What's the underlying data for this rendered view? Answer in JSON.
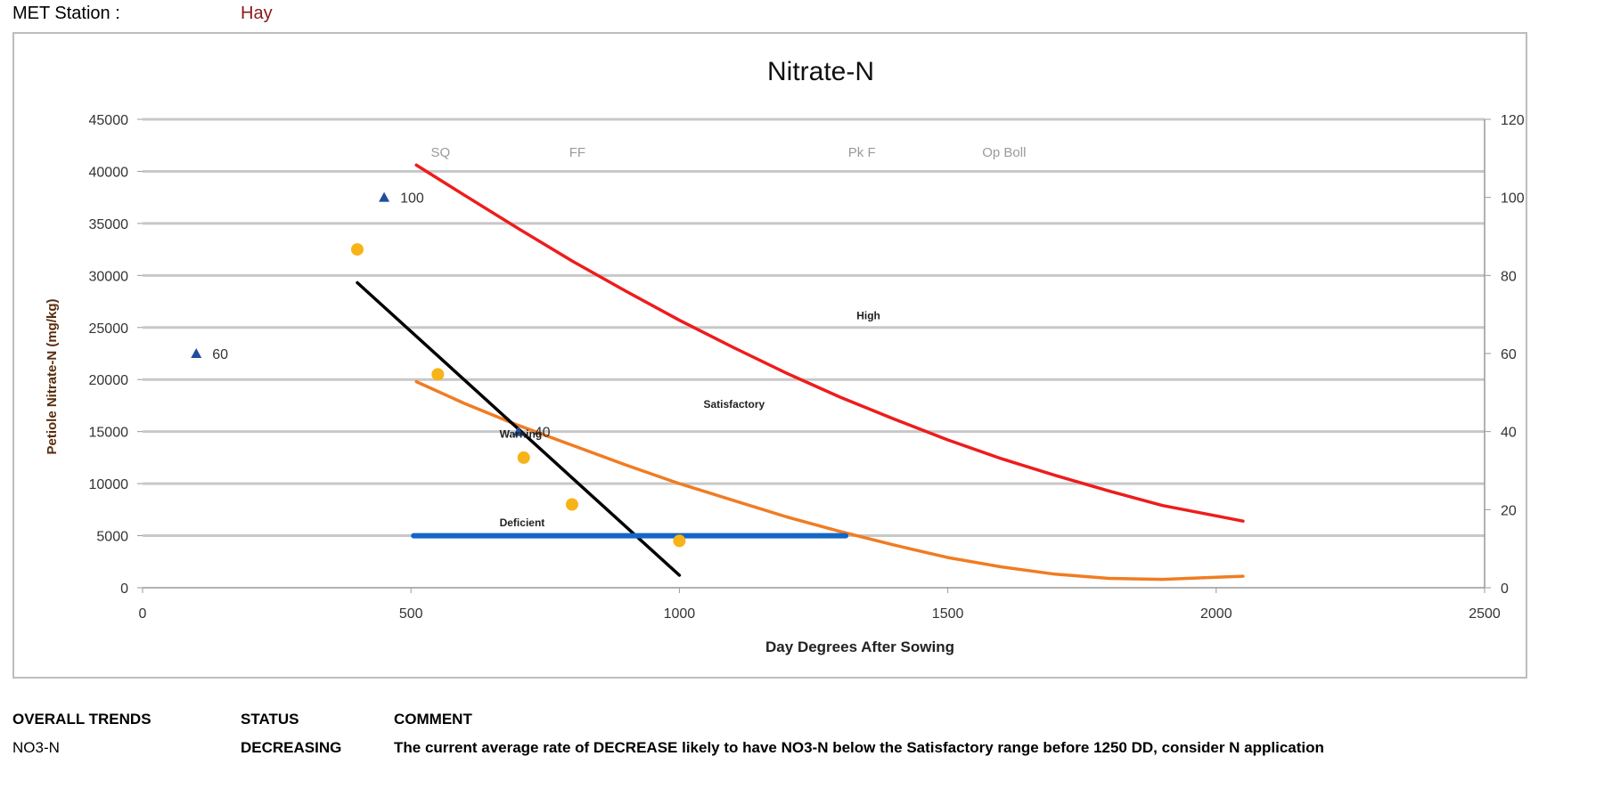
{
  "met_station": {
    "label": "MET Station :",
    "value": "Hay"
  },
  "chart_data": {
    "type": "scatter",
    "title": "Nitrate-N",
    "xlabel": "Day Degrees After Sowing",
    "ylabel": "Petiole Nitrate-N (mg/kg)",
    "xlim": [
      0,
      2500
    ],
    "ylim": [
      0,
      45000
    ],
    "y2lim": [
      0,
      120
    ],
    "x_ticks": [
      "0",
      "500",
      "1000",
      "1500",
      "2000",
      "2500"
    ],
    "y_ticks": [
      "0",
      "5000",
      "10000",
      "15000",
      "20000",
      "25000",
      "30000",
      "35000",
      "40000",
      "45000"
    ],
    "y2_ticks": [
      "0",
      "20",
      "40",
      "60",
      "80",
      "100",
      "120"
    ],
    "grid": "horizontal",
    "stage_labels": [
      {
        "text": "SQ",
        "x": 555
      },
      {
        "text": "FF",
        "x": 810
      },
      {
        "text": "Pk F",
        "x": 1340
      },
      {
        "text": "Op Boll",
        "x": 1605
      }
    ],
    "zone_labels": [
      {
        "text": "High",
        "x": 1330,
        "y": 25800
      },
      {
        "text": "Satisfactory",
        "x": 1045,
        "y": 17300
      },
      {
        "text": "Warning",
        "x": 665,
        "y": 14400
      },
      {
        "text": "Deficient",
        "x": 665,
        "y": 5900
      }
    ],
    "series": [
      {
        "color": "#ee1c1c",
        "type": "curve",
        "points": [
          [
            510,
            40600
          ],
          [
            600,
            37700
          ],
          [
            700,
            34500
          ],
          [
            800,
            31400
          ],
          [
            900,
            28500
          ],
          [
            1000,
            25700
          ],
          [
            1100,
            23100
          ],
          [
            1200,
            20600
          ],
          [
            1300,
            18300
          ],
          [
            1400,
            16200
          ],
          [
            1500,
            14200
          ],
          [
            1600,
            12400
          ],
          [
            1700,
            10800
          ],
          [
            1800,
            9300
          ],
          [
            1900,
            7900
          ],
          [
            2000,
            6900
          ],
          [
            2050,
            6400
          ]
        ]
      },
      {
        "color": "#f07c22",
        "type": "curve",
        "points": [
          [
            510,
            19800
          ],
          [
            600,
            17700
          ],
          [
            700,
            15600
          ],
          [
            800,
            13700
          ],
          [
            900,
            11800
          ],
          [
            1000,
            10000
          ],
          [
            1100,
            8400
          ],
          [
            1200,
            6800
          ],
          [
            1300,
            5400
          ],
          [
            1400,
            4100
          ],
          [
            1500,
            2900
          ],
          [
            1600,
            2000
          ],
          [
            1700,
            1300
          ],
          [
            1800,
            900
          ],
          [
            1900,
            800
          ],
          [
            2000,
            1000
          ],
          [
            2050,
            1100
          ]
        ]
      },
      {
        "color": "#000000",
        "type": "line",
        "points": [
          [
            400,
            29300
          ],
          [
            1000,
            1200
          ]
        ]
      },
      {
        "color": "#1466c6",
        "type": "line",
        "points": [
          [
            505,
            5000
          ],
          [
            1310,
            5000
          ]
        ]
      },
      {
        "color": "#f7b318",
        "type": "scatter",
        "points": [
          [
            400,
            32500
          ],
          [
            550,
            20500
          ],
          [
            710,
            12500
          ],
          [
            800,
            8000
          ],
          [
            1000,
            4500
          ]
        ]
      },
      {
        "color": "#1f4e9e",
        "type": "triangle",
        "axis": "y2",
        "points": [
          [
            100,
            60,
            "60"
          ],
          [
            450,
            100,
            "100"
          ],
          [
            700,
            40,
            "40"
          ]
        ]
      }
    ]
  },
  "trends": {
    "headers": [
      "OVERALL TRENDS",
      "STATUS",
      "COMMENT"
    ],
    "row": {
      "trend": "NO3-N",
      "status": "DECREASING",
      "comment": "The current average rate of DECREASE likely to have NO3-N below  the Satisfactory range before 1250 DD, consider N application"
    }
  }
}
